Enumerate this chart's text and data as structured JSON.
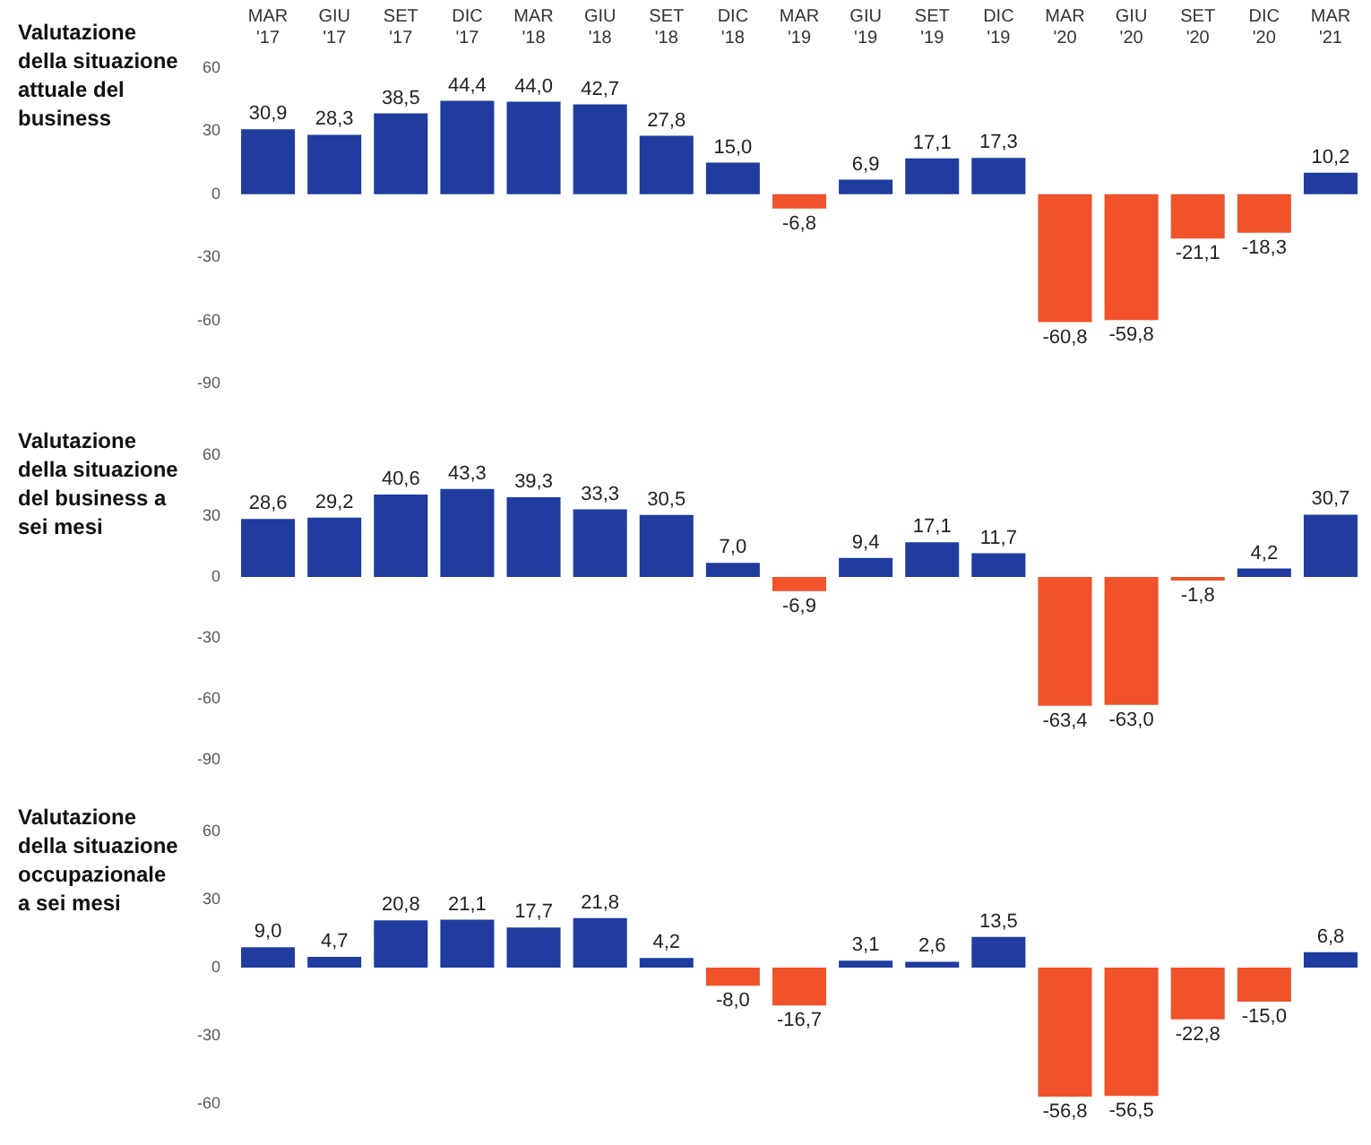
{
  "chart_data": [
    {
      "type": "bar",
      "title": "Valutazione della situazione attuale del business",
      "categories": [
        "MAR '17",
        "GIU '17",
        "SET '17",
        "DIC '17",
        "MAR '18",
        "GIU '18",
        "SET '18",
        "DIC '18",
        "MAR '19",
        "GIU '19",
        "SET '19",
        "DIC '19",
        "MAR '20",
        "GIU '20",
        "SET '20",
        "DIC '20",
        "MAR '21"
      ],
      "values": [
        30.9,
        28.3,
        38.5,
        44.4,
        44.0,
        42.7,
        27.8,
        15.0,
        -6.8,
        6.9,
        17.1,
        17.3,
        -60.8,
        -59.8,
        -21.1,
        -18.3,
        10.2
      ],
      "value_labels": [
        "30,9",
        "28,3",
        "38,5",
        "44,4",
        "44,0",
        "42,7",
        "27,8",
        "15,0",
        "-6,8",
        "6,9",
        "17,1",
        "17,3",
        "-60,8",
        "-59,8",
        "-21,1",
        "-18,3",
        "10,2"
      ],
      "colors": [
        "#1f3c9e",
        "#1f3c9e",
        "#1f3c9e",
        "#1f3c9e",
        "#1f3c9e",
        "#1f3c9e",
        "#1f3c9e",
        "#1f3c9e",
        "#f0522a",
        "#1f3c9e",
        "#1f3c9e",
        "#1f3c9e",
        "#f0522a",
        "#f0522a",
        "#f0522a",
        "#f0522a",
        "#1f3c9e"
      ],
      "ylim": [
        -90,
        60
      ],
      "yticks": [
        60,
        30,
        0,
        -30,
        -60,
        -90
      ],
      "grid": false,
      "legend": false
    },
    {
      "type": "bar",
      "title": "Valutazione della situazione del business a sei mesi",
      "categories": [
        null,
        null,
        null,
        null,
        null,
        null,
        null,
        null,
        null,
        null,
        null,
        null,
        null,
        null,
        null,
        null,
        null
      ],
      "values": [
        28.6,
        29.2,
        40.6,
        43.3,
        39.3,
        33.3,
        30.5,
        7.0,
        -6.9,
        9.4,
        17.1,
        11.7,
        -63.4,
        -63.0,
        -1.8,
        4.2,
        30.7
      ],
      "value_labels": [
        "28,6",
        "29,2",
        "40,6",
        "43,3",
        "39,3",
        "33,3",
        "30,5",
        "7,0",
        "-6,9",
        "9,4",
        "17,1",
        "11,7",
        "-63,4",
        "-63,0",
        "-1,8",
        "4,2",
        "30,7"
      ],
      "colors": [
        "#1f3c9e",
        "#1f3c9e",
        "#1f3c9e",
        "#1f3c9e",
        "#1f3c9e",
        "#1f3c9e",
        "#1f3c9e",
        "#1f3c9e",
        "#f0522a",
        "#1f3c9e",
        "#1f3c9e",
        "#1f3c9e",
        "#f0522a",
        "#f0522a",
        "#f0522a",
        "#1f3c9e",
        "#1f3c9e"
      ],
      "ylim": [
        -90,
        60
      ],
      "yticks": [
        60,
        30,
        0,
        -30,
        -60,
        -90
      ],
      "grid": false,
      "legend": false,
      "tick_labels": "y"
    },
    {
      "type": "bar",
      "title": "Valutazione della situazione occupazionale a sei mesi",
      "categories": [
        null,
        null,
        null,
        null,
        null,
        null,
        null,
        null,
        null,
        null,
        null,
        null,
        null,
        null,
        null,
        null,
        null
      ],
      "values": [
        9.0,
        4.7,
        20.8,
        21.1,
        17.7,
        21.8,
        4.2,
        -8.0,
        -16.7,
        3.1,
        2.6,
        13.5,
        -56.8,
        -56.5,
        -22.8,
        -15.0,
        6.8
      ],
      "value_labels": [
        "9,0",
        "4,7",
        "20,8",
        "21,1",
        "17,7",
        "21,8",
        "4,2",
        "-8,0",
        "-16,7",
        "3,1",
        "2,6",
        "13,5",
        "-56,8",
        "-56,5",
        "-22,8",
        "-15,0",
        "6,8"
      ],
      "colors": [
        "#1f3c9e",
        "#1f3c9e",
        "#1f3c9e",
        "#1f3c9e",
        "#1f3c9e",
        "#1f3c9e",
        "#1f3c9e",
        "#f0522a",
        "#f0522a",
        "#1f3c9e",
        "#1f3c9e",
        "#1f3c9e",
        "#f0522a",
        "#f0522a",
        "#f0522a",
        "#f0522a",
        "#1f3c9e"
      ],
      "ylim": [
        -60,
        60
      ],
      "yticks": [
        60,
        30,
        0,
        -30,
        -60
      ],
      "grid": false,
      "legend": false,
      "tick_labels": "y"
    }
  ]
}
